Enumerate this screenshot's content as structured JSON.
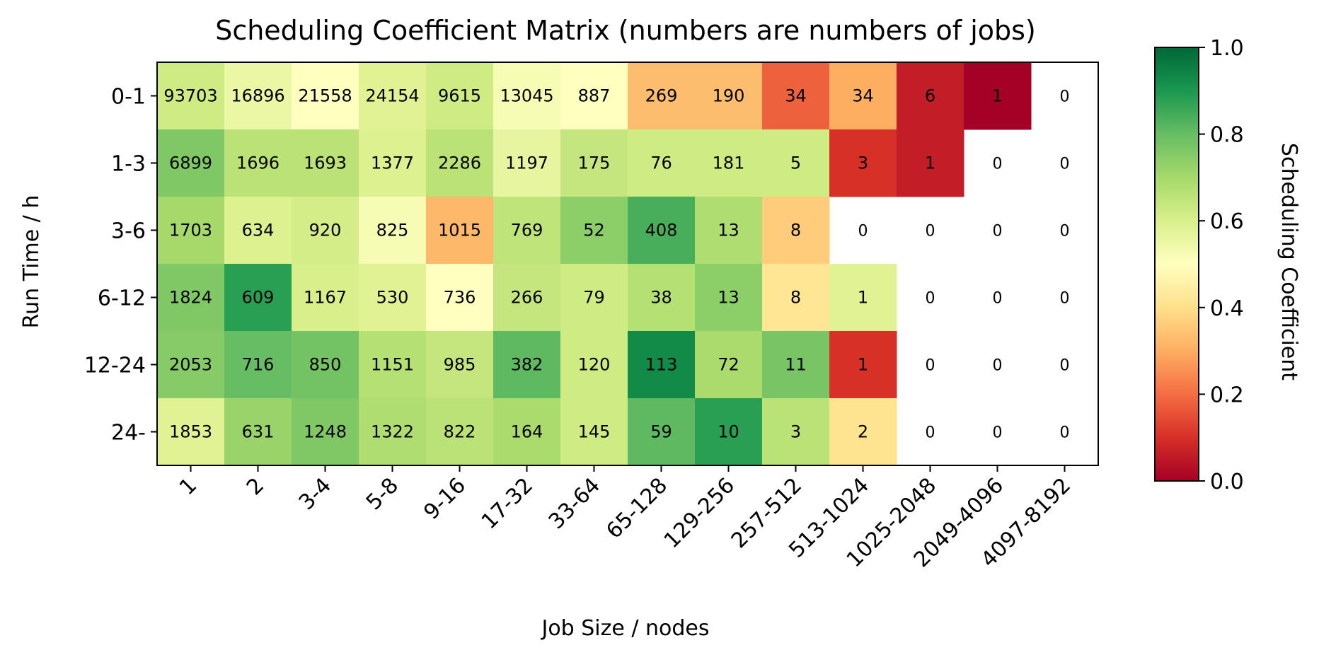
{
  "chart_data": {
    "type": "heatmap",
    "title": "Scheduling Coefficient Matrix (numbers are numbers of jobs)",
    "xlabel": "Job Size / nodes",
    "ylabel": "Run Time / h",
    "colorbar_label": "Scheduling Coefficient",
    "colorbar_range": [
      0.0,
      1.0
    ],
    "colorbar_ticks": [
      "0.0",
      "0.2",
      "0.4",
      "0.6",
      "0.8",
      "1.0"
    ],
    "colormap": "RdYlGn",
    "x_categories": [
      "1",
      "2",
      "3-4",
      "5-8",
      "9-16",
      "17-32",
      "33-64",
      "65-128",
      "129-256",
      "257-512",
      "513-1024",
      "1025-2048",
      "2049-4096",
      "4097-8192"
    ],
    "y_categories": [
      "0-1",
      "1-3",
      "3-6",
      "6-12",
      "12-24",
      "24-"
    ],
    "counts": [
      [
        93703,
        16896,
        21558,
        24154,
        9615,
        13045,
        887,
        269,
        190,
        34,
        34,
        6,
        1,
        0
      ],
      [
        6899,
        1696,
        1693,
        1377,
        2286,
        1197,
        175,
        76,
        181,
        5,
        3,
        1,
        0,
        0
      ],
      [
        1703,
        634,
        920,
        825,
        1015,
        769,
        52,
        408,
        13,
        8,
        0,
        0,
        0,
        0
      ],
      [
        1824,
        609,
        1167,
        530,
        736,
        266,
        79,
        38,
        13,
        8,
        1,
        0,
        0,
        0
      ],
      [
        2053,
        716,
        850,
        1151,
        985,
        382,
        120,
        113,
        72,
        11,
        1,
        0,
        0,
        0
      ],
      [
        1853,
        631,
        1248,
        1322,
        822,
        164,
        145,
        59,
        10,
        3,
        2,
        0,
        0,
        0
      ]
    ],
    "coefficients": [
      [
        0.62,
        0.55,
        0.5,
        0.58,
        0.62,
        0.52,
        0.5,
        0.33,
        0.33,
        0.18,
        0.3,
        0.06,
        0.0,
        null
      ],
      [
        0.76,
        0.66,
        0.66,
        0.59,
        0.66,
        0.56,
        0.64,
        0.62,
        0.62,
        0.62,
        0.1,
        0.06,
        null,
        null
      ],
      [
        0.7,
        0.59,
        0.61,
        0.52,
        0.32,
        0.65,
        0.74,
        0.84,
        0.68,
        0.36,
        null,
        null,
        null,
        null
      ],
      [
        0.76,
        0.88,
        0.6,
        0.58,
        0.5,
        0.64,
        0.62,
        0.67,
        0.74,
        0.42,
        0.58,
        null,
        null,
        null
      ],
      [
        0.75,
        0.8,
        0.78,
        0.67,
        0.64,
        0.81,
        0.62,
        0.93,
        0.69,
        0.77,
        0.1,
        null,
        null,
        null
      ],
      [
        0.58,
        0.72,
        0.76,
        0.68,
        0.66,
        0.69,
        0.62,
        0.81,
        0.88,
        0.66,
        0.41,
        null,
        null,
        null
      ]
    ]
  }
}
